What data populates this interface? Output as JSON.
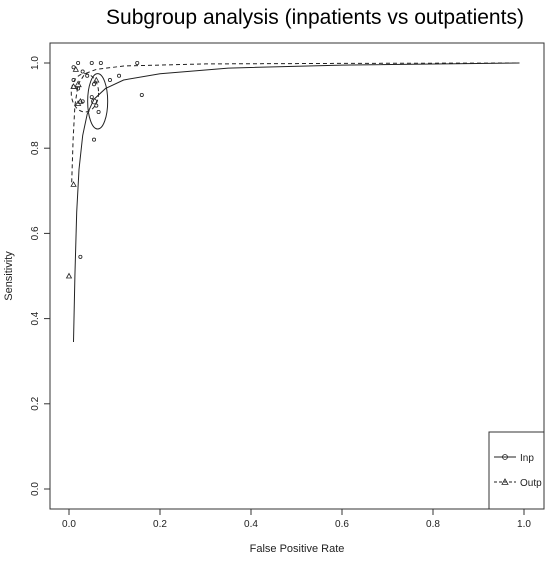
{
  "chart_data": {
    "type": "scatter",
    "title": "Subgroup analysis (inpatients vs outpatients)",
    "xlabel": "False Positive Rate",
    "ylabel": "Sensitivity",
    "xlim": [
      0,
      1
    ],
    "ylim": [
      0,
      1
    ],
    "x_ticks": [
      "0.0",
      "0.2",
      "0.4",
      "0.6",
      "0.8",
      "1.0"
    ],
    "y_ticks": [
      "0.0",
      "0.2",
      "0.4",
      "0.6",
      "0.8",
      "1.0"
    ],
    "grid": false,
    "legend": {
      "placement": "bottom-right",
      "entries": [
        "Inp",
        "Outp"
      ]
    },
    "series": [
      {
        "name": "Inp",
        "marker": "circle",
        "line": "solid",
        "points": [
          [
            0.01,
            0.99
          ],
          [
            0.01,
            0.96
          ],
          [
            0.02,
            0.94
          ],
          [
            0.03,
            0.98
          ],
          [
            0.05,
            1.0
          ],
          [
            0.07,
            1.0
          ],
          [
            0.02,
            1.0
          ],
          [
            0.04,
            0.97
          ],
          [
            0.055,
            0.95
          ],
          [
            0.05,
            0.92
          ],
          [
            0.06,
            0.9
          ],
          [
            0.065,
            0.885
          ],
          [
            0.055,
            0.82
          ],
          [
            0.09,
            0.96
          ],
          [
            0.11,
            0.97
          ],
          [
            0.15,
            1.0
          ],
          [
            0.16,
            0.925
          ],
          [
            0.025,
            0.545
          ],
          [
            0.03,
            0.91
          ]
        ],
        "sroc": [
          [
            0.01,
            0.345
          ],
          [
            0.013,
            0.5
          ],
          [
            0.017,
            0.65
          ],
          [
            0.022,
            0.75
          ],
          [
            0.03,
            0.83
          ],
          [
            0.04,
            0.88
          ],
          [
            0.055,
            0.915
          ],
          [
            0.08,
            0.94
          ],
          [
            0.12,
            0.96
          ],
          [
            0.2,
            0.975
          ],
          [
            0.35,
            0.988
          ],
          [
            0.6,
            0.995
          ],
          [
            0.99,
            1.0
          ]
        ],
        "summary_point": [
          0.055,
          0.91
        ],
        "confidence_region": {
          "center": [
            0.063,
            0.91
          ],
          "fpr_radius": 0.022,
          "sens_radius": 0.065
        }
      },
      {
        "name": "Outp",
        "marker": "triangle",
        "line": "dashed",
        "points": [
          [
            0.0,
            0.5
          ],
          [
            0.01,
            0.715
          ],
          [
            0.01,
            0.945
          ],
          [
            0.02,
            0.905
          ],
          [
            0.025,
            0.91
          ],
          [
            0.015,
            0.985
          ],
          [
            0.06,
            0.96
          ]
        ],
        "sroc": [
          [
            0.006,
            0.72
          ],
          [
            0.009,
            0.82
          ],
          [
            0.013,
            0.9
          ],
          [
            0.02,
            0.95
          ],
          [
            0.035,
            0.975
          ],
          [
            0.06,
            0.985
          ],
          [
            0.12,
            0.993
          ],
          [
            0.3,
            0.998
          ],
          [
            0.6,
            0.999
          ],
          [
            0.99,
            1.0
          ]
        ],
        "summary_point": [
          0.02,
          0.95
        ],
        "confidence_region": {
          "center": [
            0.035,
            0.93
          ],
          "fpr_radius": 0.03,
          "sens_radius": 0.045
        }
      }
    ]
  }
}
